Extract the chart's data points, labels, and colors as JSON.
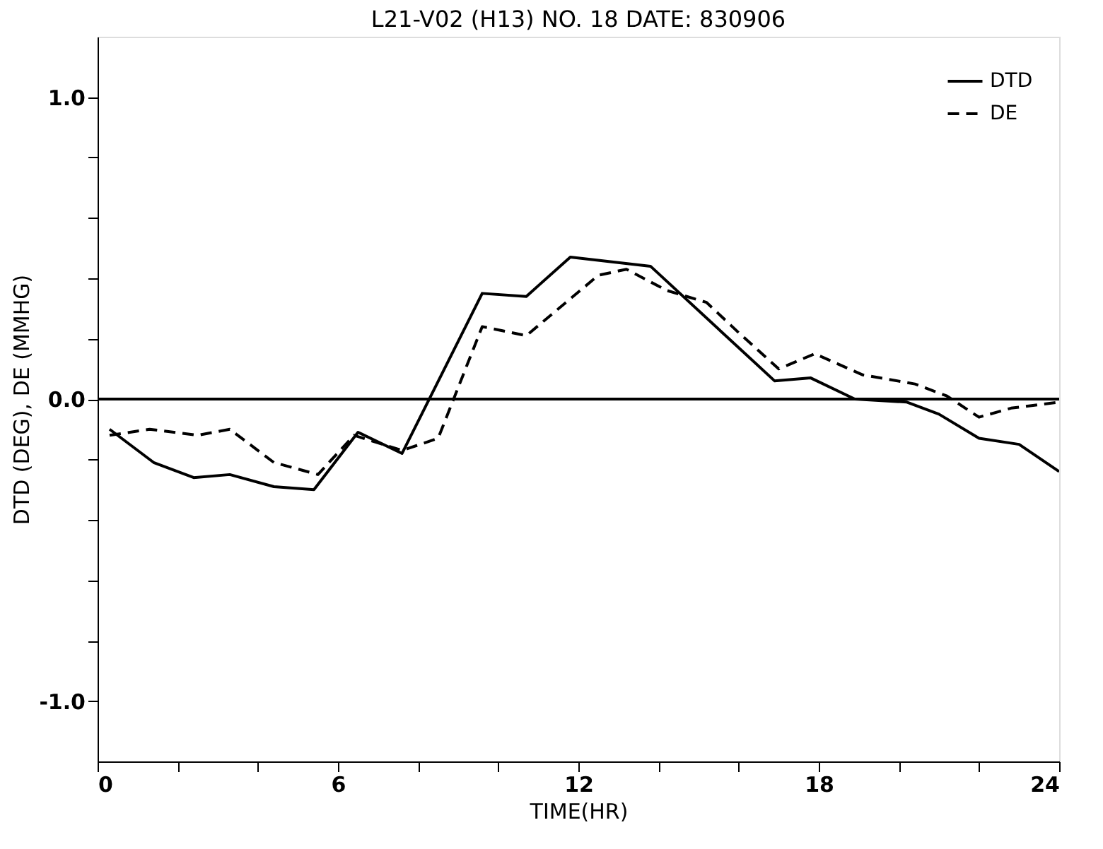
{
  "chart_data": {
    "type": "line",
    "title": "L21-V02 (H13)   NO. 18      DATE: 830906",
    "xlabel": "TIME(HR)",
    "ylabel": "DTD (DEG), DE (MMHG)",
    "series": [
      {
        "name": "DTD",
        "color": "#000000",
        "line_style": "solid",
        "x": [
          0.3,
          1.4,
          2.4,
          3.3,
          4.4,
          5.4,
          6.5,
          7.6,
          9.6,
          10.7,
          11.8,
          13.8,
          16.9,
          17.8,
          18.9,
          20.2,
          21.0,
          22.0,
          23.0,
          24.0
        ],
        "values": [
          -0.1,
          -0.21,
          -0.26,
          -0.25,
          -0.29,
          -0.3,
          -0.11,
          -0.18,
          0.35,
          0.34,
          0.47,
          0.44,
          0.06,
          0.07,
          0.0,
          -0.01,
          -0.05,
          -0.13,
          -0.15,
          -0.24
        ]
      },
      {
        "name": "DE",
        "color": "#000000",
        "line_style": "dashed",
        "x": [
          0.3,
          1.3,
          2.5,
          3.3,
          4.4,
          5.5,
          6.4,
          7.6,
          8.5,
          9.6,
          10.7,
          12.5,
          13.2,
          14.2,
          15.2,
          16.0,
          17.0,
          17.9,
          19.1,
          20.4,
          21.2,
          22.0,
          22.8,
          24.0
        ],
        "values": [
          -0.12,
          -0.1,
          -0.12,
          -0.1,
          -0.21,
          -0.25,
          -0.12,
          -0.17,
          -0.13,
          0.24,
          0.21,
          0.41,
          0.43,
          0.36,
          0.32,
          0.22,
          0.1,
          0.15,
          0.08,
          0.05,
          0.01,
          -0.06,
          -0.03,
          -0.01
        ]
      }
    ],
    "xlim": [
      0,
      24
    ],
    "xticks": [
      0,
      {
        "value": 2,
        "label": null
      },
      {
        "value": 4,
        "label": null
      },
      6,
      {
        "value": 8,
        "label": null
      },
      {
        "value": 10,
        "label": null
      },
      12,
      {
        "value": 14,
        "label": null
      },
      {
        "value": 16,
        "label": null
      },
      18,
      {
        "value": 20,
        "label": null
      },
      {
        "value": 22,
        "label": null
      },
      24
    ],
    "ylim": [
      -1.2,
      1.2
    ],
    "yticks": [
      {
        "value": -1.0,
        "label": "-1.0"
      },
      {
        "value": -0.8,
        "label": null
      },
      {
        "value": -0.6,
        "label": null
      },
      {
        "value": -0.4,
        "label": null
      },
      {
        "value": -0.2,
        "label": null
      },
      {
        "value": 0.0,
        "label": "0.0"
      },
      {
        "value": 0.2,
        "label": null
      },
      {
        "value": 0.4,
        "label": null
      },
      {
        "value": 0.6,
        "label": null
      },
      {
        "value": 0.8,
        "label": null
      },
      {
        "value": 1.0,
        "label": "1.0"
      }
    ],
    "ref_lines": [
      {
        "axis": "y",
        "value": 0.0,
        "color": "#000000",
        "line_style": "solid"
      }
    ],
    "grid": false,
    "legend": "top right"
  }
}
